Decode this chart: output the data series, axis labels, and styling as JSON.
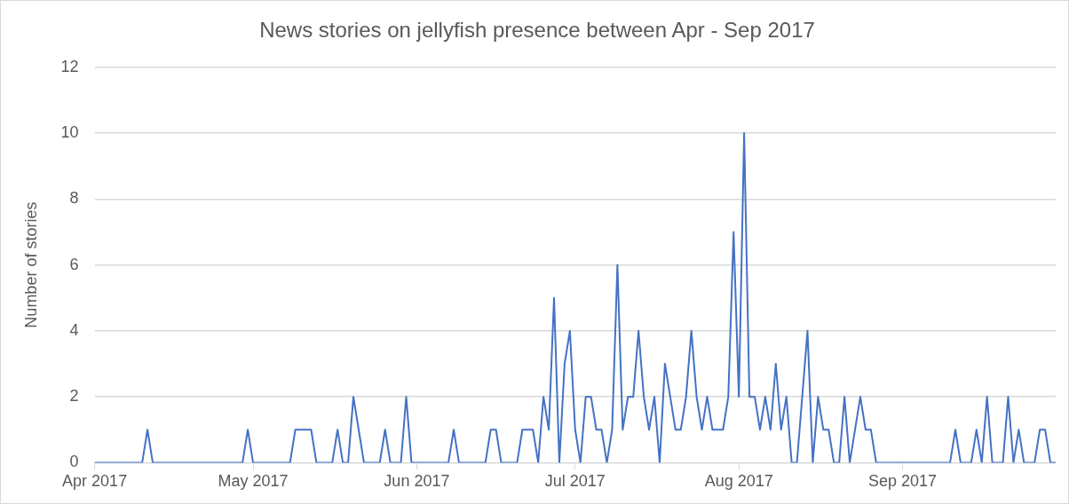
{
  "chart_data": {
    "type": "line",
    "title": "News stories on jellyfish presence between Apr - Sep 2017",
    "ylabel": "Number of stories",
    "x": [
      "2017-04-01",
      "2017-04-10",
      "2017-04-11",
      "2017-04-12",
      "2017-04-29",
      "2017-04-30",
      "2017-05-01",
      "2017-05-08",
      "2017-05-09",
      "2017-05-12",
      "2017-05-13",
      "2017-05-16",
      "2017-05-17",
      "2017-05-18",
      "2017-05-19",
      "2017-05-20",
      "2017-05-21",
      "2017-05-22",
      "2017-05-25",
      "2017-05-26",
      "2017-05-27",
      "2017-05-29",
      "2017-05-30",
      "2017-05-31",
      "2017-06-07",
      "2017-06-08",
      "2017-06-09",
      "2017-06-14",
      "2017-06-15",
      "2017-06-16",
      "2017-06-17",
      "2017-06-20",
      "2017-06-21",
      "2017-06-23",
      "2017-06-24",
      "2017-06-25",
      "2017-06-26",
      "2017-06-27",
      "2017-06-28",
      "2017-06-29",
      "2017-06-30",
      "2017-07-01",
      "2017-07-02",
      "2017-07-03",
      "2017-07-04",
      "2017-07-05",
      "2017-07-06",
      "2017-07-07",
      "2017-07-08",
      "2017-07-09",
      "2017-07-10",
      "2017-07-11",
      "2017-07-12",
      "2017-07-13",
      "2017-07-14",
      "2017-07-15",
      "2017-07-16",
      "2017-07-17",
      "2017-07-18",
      "2017-07-19",
      "2017-07-20",
      "2017-07-21",
      "2017-07-22",
      "2017-07-23",
      "2017-07-24",
      "2017-07-25",
      "2017-07-26",
      "2017-07-27",
      "2017-07-29",
      "2017-07-30",
      "2017-07-31",
      "2017-08-01",
      "2017-08-02",
      "2017-08-03",
      "2017-08-04",
      "2017-08-05",
      "2017-08-06",
      "2017-08-07",
      "2017-08-08",
      "2017-08-09",
      "2017-08-10",
      "2017-08-11",
      "2017-08-12",
      "2017-08-14",
      "2017-08-15",
      "2017-08-16",
      "2017-08-17",
      "2017-08-18",
      "2017-08-19",
      "2017-08-20",
      "2017-08-21",
      "2017-08-22",
      "2017-08-24",
      "2017-08-25",
      "2017-08-26",
      "2017-08-27",
      "2017-09-10",
      "2017-09-11",
      "2017-09-12",
      "2017-09-14",
      "2017-09-15",
      "2017-09-16",
      "2017-09-17",
      "2017-09-18",
      "2017-09-20",
      "2017-09-21",
      "2017-09-22",
      "2017-09-23",
      "2017-09-24",
      "2017-09-26",
      "2017-09-27",
      "2017-09-28",
      "2017-09-29",
      "2017-09-30"
    ],
    "series": [
      {
        "color": "#4472c4",
        "values": [
          0,
          0,
          1,
          0,
          0,
          1,
          0,
          0,
          1,
          1,
          0,
          0,
          1,
          0,
          0,
          2,
          1,
          0,
          0,
          1,
          0,
          0,
          2,
          0,
          0,
          1,
          0,
          0,
          1,
          1,
          0,
          0,
          1,
          1,
          0,
          2,
          1,
          5,
          0,
          3,
          4,
          1,
          0,
          2,
          2,
          1,
          1,
          0,
          1,
          6,
          1,
          2,
          2,
          4,
          2,
          1,
          2,
          0,
          3,
          2,
          1,
          1,
          2,
          4,
          2,
          1,
          2,
          1,
          1,
          2,
          7,
          2,
          10,
          2,
          2,
          1,
          2,
          1,
          3,
          1,
          2,
          0,
          0,
          4,
          0,
          2,
          1,
          1,
          0,
          0,
          2,
          0,
          2,
          1,
          1,
          0,
          0,
          1,
          0,
          0,
          1,
          0,
          2,
          0,
          0,
          2,
          0,
          1,
          0,
          0,
          1,
          1,
          0,
          0
        ]
      }
    ],
    "xlim": [
      "2017-04-01",
      "2017-09-30"
    ],
    "xticks": [
      {
        "value": "2017-04-01",
        "label": "Apr 2017"
      },
      {
        "value": "2017-05-01",
        "label": "May 2017"
      },
      {
        "value": "2017-06-01",
        "label": "Jun 2017"
      },
      {
        "value": "2017-07-01",
        "label": "Jul 2017"
      },
      {
        "value": "2017-08-01",
        "label": "Aug 2017"
      },
      {
        "value": "2017-09-01",
        "label": "Sep 2017"
      }
    ],
    "ylim": [
      0,
      12
    ],
    "yticks": [
      0,
      2,
      4,
      6,
      8,
      10,
      12
    ],
    "grid": "y",
    "legend": false,
    "marker": "none",
    "line_style": "solid"
  }
}
